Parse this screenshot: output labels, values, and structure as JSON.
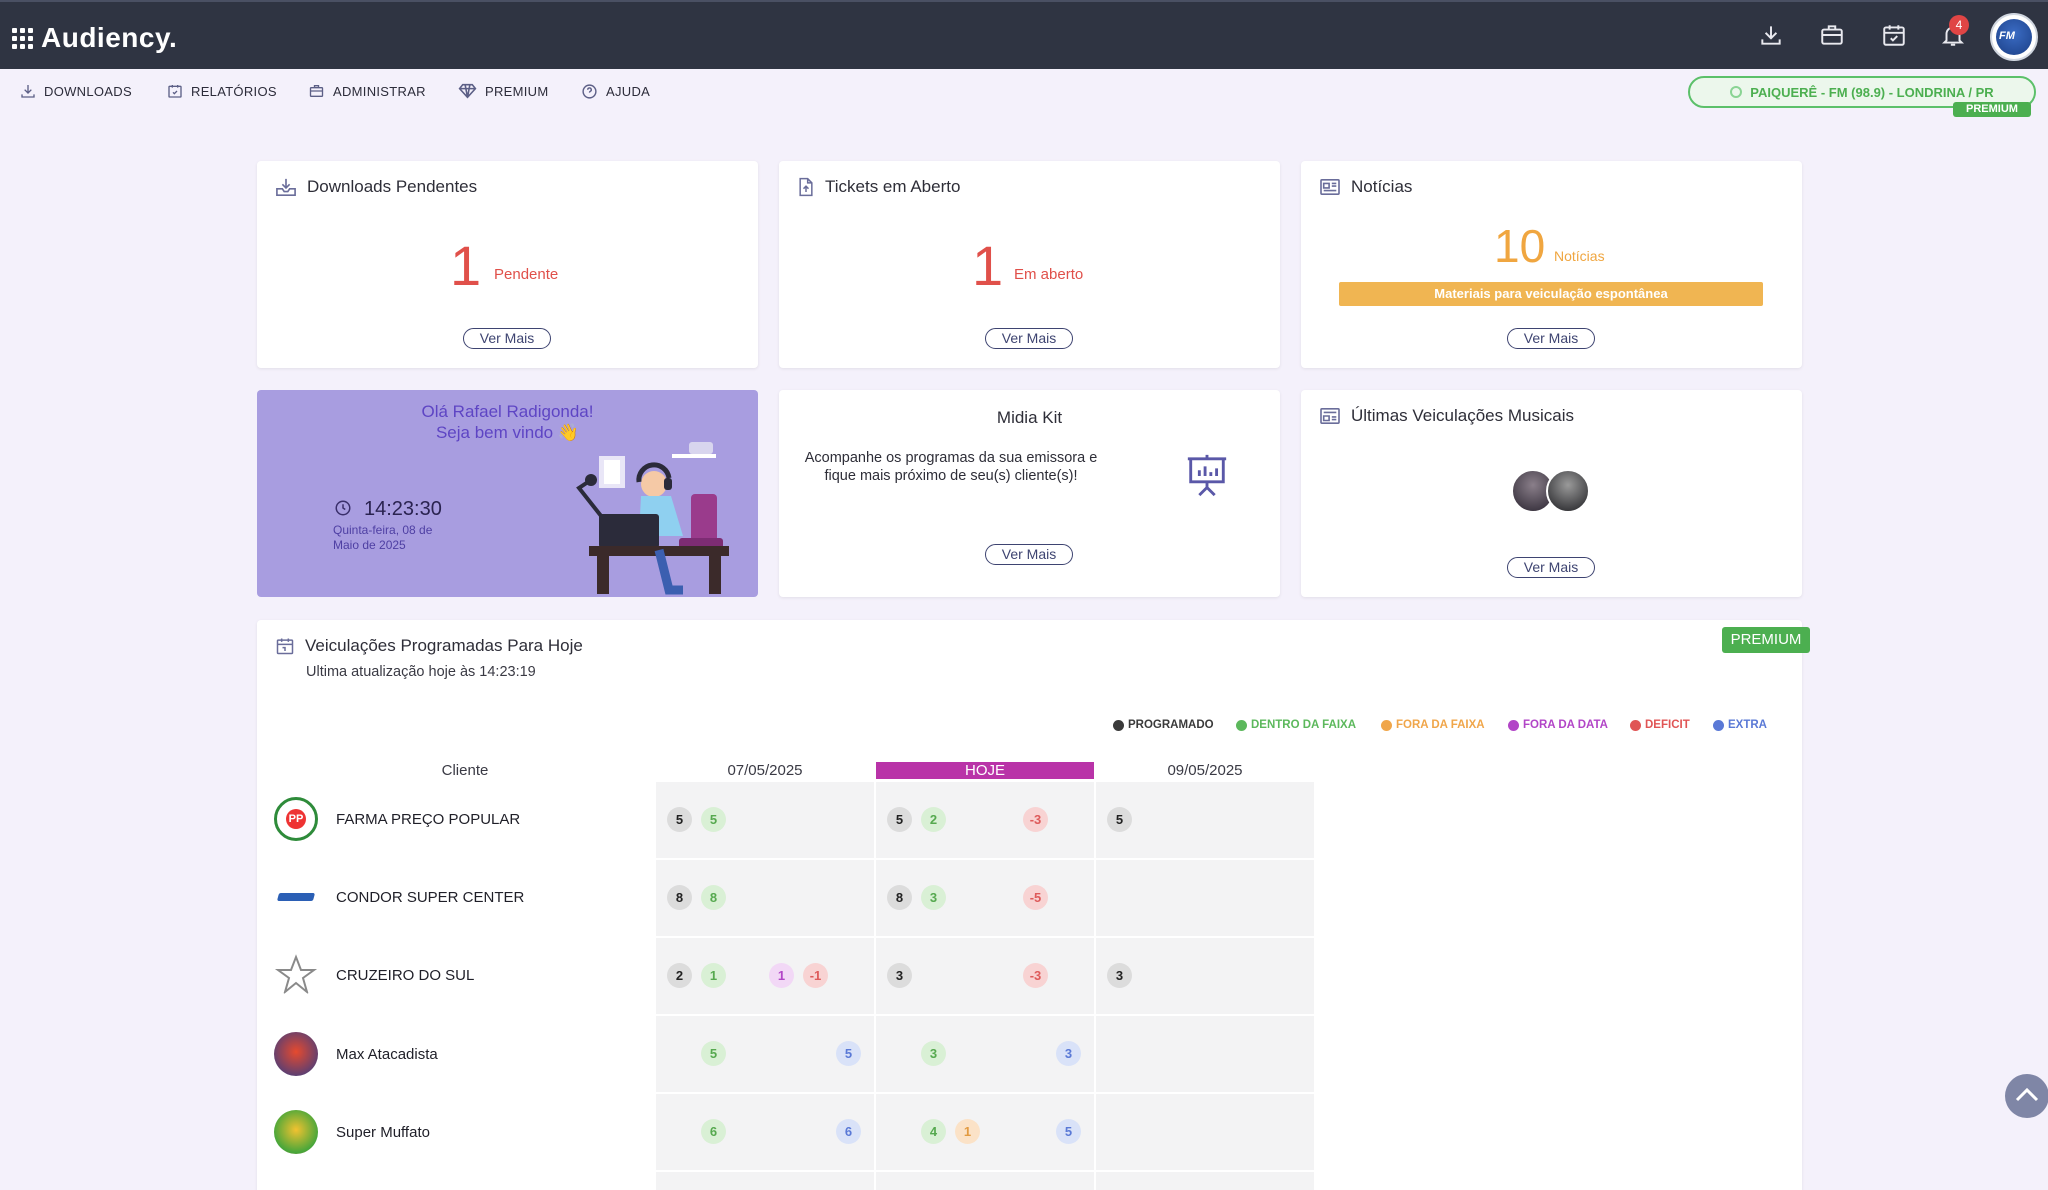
{
  "app": {
    "name": "Audiency.",
    "notification_count": "4",
    "avatar_text": "FM"
  },
  "nav": {
    "downloads": "DOWNLOADS",
    "relatorios": "RELATÓRIOS",
    "administrar": "ADMINISTRAR",
    "premium": "PREMIUM",
    "ajuda": "AJUDA"
  },
  "station": {
    "name": "PAIQUERÊ - FM (98.9) - LONDRINA / PR",
    "tier": "PREMIUM"
  },
  "cards": {
    "downloads": {
      "title": "Downloads Pendentes",
      "count": "1",
      "label": "Pendente",
      "button": "Ver Mais"
    },
    "tickets": {
      "title": "Tickets em Aberto",
      "count": "1",
      "label": "Em aberto",
      "button": "Ver Mais"
    },
    "news": {
      "title": "Notícias",
      "count": "10",
      "label": "Notícias",
      "banner": "Materiais para veiculação espontânea",
      "button": "Ver Mais"
    },
    "welcome": {
      "greeting": "Olá Rafael Radigonda!",
      "subgreeting": "Seja bem vindo 👋",
      "time": "14:23:30",
      "date_line1": "Quinta-feira,  08  de",
      "date_line2": "Maio de 2025"
    },
    "midia": {
      "title": "Midia Kit",
      "text_line1": "Acompanhe os programas da sua emissora e",
      "text_line2": "fique mais próximo de seu(s) cliente(s)!",
      "button": "Ver Mais"
    },
    "music": {
      "title": "Últimas Veiculações Musicais",
      "button": "Ver Mais"
    }
  },
  "schedule": {
    "title": "Veiculações Programadas Para Hoje",
    "updated": "Ultima atualização hoje às 14:23:19",
    "tier": "PREMIUM",
    "legend": [
      {
        "label": "PROGRAMADO",
        "color": "#3a3a3a"
      },
      {
        "label": "DENTRO DA FAIXA",
        "color": "#5cb85c"
      },
      {
        "label": "FORA DA FAIXA",
        "color": "#f0a64a"
      },
      {
        "label": "FORA DA DATA",
        "color": "#b245c7"
      },
      {
        "label": "DEFICIT",
        "color": "#e05555"
      },
      {
        "label": "EXTRA",
        "color": "#5a79d6"
      }
    ],
    "columns": {
      "client": "Cliente",
      "d1": "07/05/2025",
      "d2": "HOJE",
      "d3": "09/05/2025"
    },
    "rows": [
      {
        "client": "FARMA PREÇO POPULAR",
        "d1": {
          "prog": "5",
          "dentro": "5"
        },
        "d2": {
          "prog": "5",
          "dentro": "2",
          "def": "-3"
        },
        "d3": {
          "prog": "5"
        }
      },
      {
        "client": "CONDOR SUPER CENTER",
        "d1": {
          "prog": "8",
          "dentro": "8"
        },
        "d2": {
          "prog": "8",
          "dentro": "3",
          "def": "-5"
        },
        "d3": {}
      },
      {
        "client": "CRUZEIRO DO SUL",
        "d1": {
          "prog": "2",
          "dentro": "1",
          "data": "1",
          "def": "-1"
        },
        "d2": {
          "prog": "3",
          "def": "-3"
        },
        "d3": {
          "prog": "3"
        }
      },
      {
        "client": "Max Atacadista",
        "d1": {
          "dentro": "5",
          "extra": "5"
        },
        "d2": {
          "dentro": "3",
          "extra": "3"
        },
        "d3": {}
      },
      {
        "client": "Super Muffato",
        "d1": {
          "dentro": "6",
          "extra": "6"
        },
        "d2": {
          "dentro": "4",
          "fora": "1",
          "extra": "5"
        },
        "d3": {}
      }
    ]
  }
}
